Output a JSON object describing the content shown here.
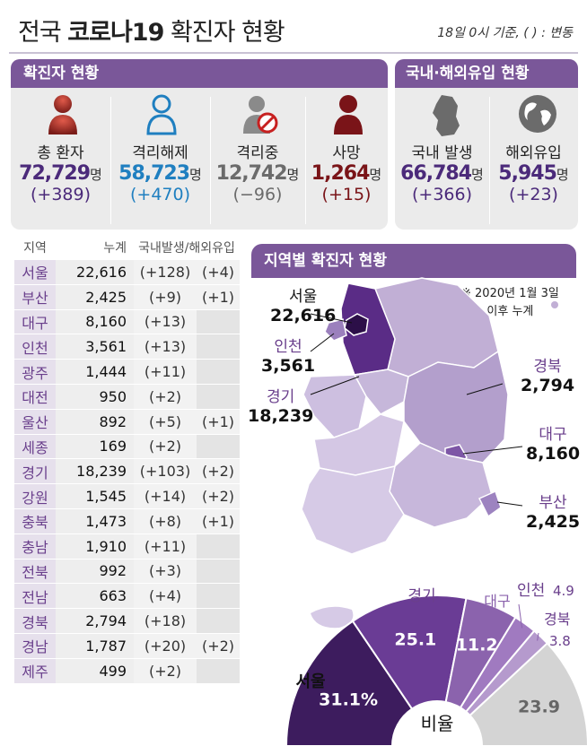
{
  "header": {
    "title_prefix": "전국 ",
    "title_bold": "코로나19",
    "title_suffix": " 확진자 현황",
    "basis_note": "18일 0시 기준, ( ) : 변동"
  },
  "cases_panel": {
    "title": "확진자 현황",
    "stats": [
      {
        "label": "총 환자",
        "value": "72,729",
        "unit": "명",
        "delta": "(+389)",
        "color": "#4b2a7a",
        "icon": "person-icon"
      },
      {
        "label": "격리해제",
        "value": "58,723",
        "unit": "명",
        "delta": "(+470)",
        "color": "#1f7fc0",
        "icon": "person-outline-icon"
      },
      {
        "label": "격리중",
        "value": "12,742",
        "unit": "명",
        "delta": "(−96)",
        "color": "#6b6b6b",
        "icon": "person-quarantine-icon"
      },
      {
        "label": "사망",
        "value": "1,264",
        "unit": "명",
        "delta": "(+15)",
        "color": "#7a1418",
        "icon": "person-dark-icon"
      }
    ]
  },
  "origin_panel": {
    "title": "국내·해외유입 현황",
    "stats": [
      {
        "label": "국내 발생",
        "value": "66,784",
        "unit": "명",
        "delta": "(+366)",
        "color": "#4b2a7a",
        "icon": "korea-map-icon"
      },
      {
        "label": "해외유입",
        "value": "5,945",
        "unit": "명",
        "delta": "(+23)",
        "color": "#4b2a7a",
        "icon": "globe-icon"
      }
    ]
  },
  "region_table": {
    "headers": [
      "지역",
      "누계",
      "국내발생/해외유입"
    ],
    "rows": [
      {
        "region": "서울",
        "total": "22,616",
        "domestic": "(+128)",
        "overseas": "(+4)"
      },
      {
        "region": "부산",
        "total": "2,425",
        "domestic": "(+9)",
        "overseas": "(+1)"
      },
      {
        "region": "대구",
        "total": "8,160",
        "domestic": "(+13)",
        "overseas": ""
      },
      {
        "region": "인천",
        "total": "3,561",
        "domestic": "(+13)",
        "overseas": ""
      },
      {
        "region": "광주",
        "total": "1,444",
        "domestic": "(+11)",
        "overseas": ""
      },
      {
        "region": "대전",
        "total": "950",
        "domestic": "(+2)",
        "overseas": ""
      },
      {
        "region": "울산",
        "total": "892",
        "domestic": "(+5)",
        "overseas": "(+1)"
      },
      {
        "region": "세종",
        "total": "169",
        "domestic": "(+2)",
        "overseas": ""
      },
      {
        "region": "경기",
        "total": "18,239",
        "domestic": "(+103)",
        "overseas": "(+2)"
      },
      {
        "region": "강원",
        "total": "1,545",
        "domestic": "(+14)",
        "overseas": "(+2)"
      },
      {
        "region": "충북",
        "total": "1,473",
        "domestic": "(+8)",
        "overseas": "(+1)"
      },
      {
        "region": "충남",
        "total": "1,910",
        "domestic": "(+11)",
        "overseas": ""
      },
      {
        "region": "전북",
        "total": "992",
        "domestic": "(+3)",
        "overseas": ""
      },
      {
        "region": "전남",
        "total": "663",
        "domestic": "(+4)",
        "overseas": ""
      },
      {
        "region": "경북",
        "total": "2,794",
        "domestic": "(+18)",
        "overseas": ""
      },
      {
        "region": "경남",
        "total": "1,787",
        "domestic": "(+20)",
        "overseas": "(+2)"
      },
      {
        "region": "제주",
        "total": "499",
        "domestic": "(+2)",
        "overseas": ""
      }
    ]
  },
  "map_panel": {
    "title": "지역별 확진자 현황",
    "note_line1": "※ 2020년 1월 3일",
    "note_line2": "이후 누계",
    "callouts": [
      {
        "name": "서울",
        "value": "22,616"
      },
      {
        "name": "인천",
        "value": "3,561"
      },
      {
        "name": "경기",
        "value": "18,239"
      },
      {
        "name": "경북",
        "value": "2,794"
      },
      {
        "name": "대구",
        "value": "8,160"
      },
      {
        "name": "부산",
        "value": "2,425"
      }
    ]
  },
  "chart_data": {
    "type": "pie",
    "title": "비율",
    "categories": [
      "서울",
      "경기",
      "대구",
      "인천",
      "경북",
      ""
    ],
    "values": [
      31.1,
      25.1,
      11.2,
      4.9,
      3.8,
      23.9
    ],
    "value_labels": [
      "31.1%",
      "25.1",
      "11.2",
      "4.9",
      "3.8",
      "23.9"
    ],
    "colors": [
      "#3d1c5e",
      "#6a3c95",
      "#8b63ad",
      "#a07ac0",
      "#b59acd",
      "#d4d4d4"
    ]
  }
}
